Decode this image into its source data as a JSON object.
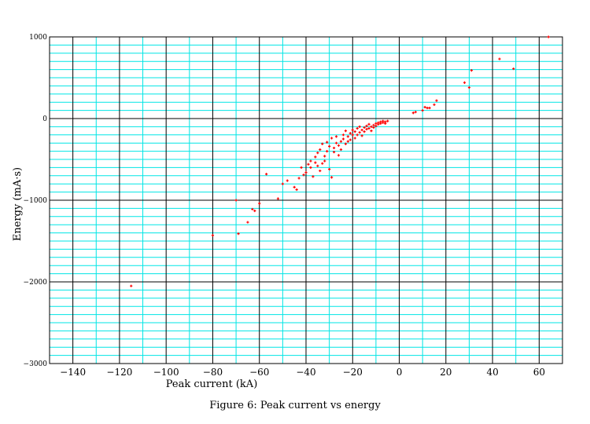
{
  "caption": "Figure 6: Peak current vs energy",
  "chart_data": {
    "type": "scatter",
    "xlabel": "Peak current (kA)",
    "ylabel": "Energy (mA·s)",
    "xlim": [
      -150,
      70
    ],
    "ylim": [
      -3000,
      1000
    ],
    "x_major_ticks": [
      -140,
      -120,
      -100,
      -80,
      -60,
      -40,
      -20,
      0,
      20,
      40,
      60
    ],
    "x_tick_labels": [
      "−140",
      "−120",
      "−100",
      "−80",
      "−60",
      "−40",
      "−20",
      "0",
      "20",
      "40",
      "60"
    ],
    "y_major_ticks": [
      -3000,
      -2000,
      -1000,
      0,
      1000
    ],
    "y_tick_labels": [
      "−3000",
      "−2000",
      "−1000",
      "0",
      "1000"
    ],
    "x_minor_step": 10,
    "y_minor_step": 100,
    "grid": true,
    "colors": {
      "points": "#ff0000",
      "minor_grid": "#00e5e5",
      "major_grid": "#000000"
    },
    "series": [
      {
        "points": [
          [
            -115,
            -2050
          ],
          [
            -80,
            -1430
          ],
          [
            -70,
            -1000
          ],
          [
            -69,
            -1410
          ],
          [
            -65,
            -1270
          ],
          [
            -63,
            -1110
          ],
          [
            -62,
            -1130
          ],
          [
            -60,
            -1040
          ],
          [
            -57,
            -680
          ],
          [
            -52,
            -980
          ],
          [
            -50,
            -800
          ],
          [
            -48,
            -760
          ],
          [
            -45,
            -840
          ],
          [
            -44,
            -870
          ],
          [
            -43,
            -730
          ],
          [
            -42,
            -600
          ],
          [
            -41,
            -690
          ],
          [
            -40,
            -660
          ],
          [
            -39,
            -560
          ],
          [
            -38,
            -520
          ],
          [
            -38,
            -600
          ],
          [
            -37,
            -710
          ],
          [
            -36,
            -540
          ],
          [
            -36,
            -470
          ],
          [
            -35,
            -420
          ],
          [
            -35,
            -580
          ],
          [
            -34,
            -380
          ],
          [
            -34,
            -640
          ],
          [
            -33,
            -550
          ],
          [
            -33,
            -310
          ],
          [
            -32,
            -460
          ],
          [
            -32,
            -520
          ],
          [
            -31,
            -400
          ],
          [
            -31,
            -290
          ],
          [
            -30,
            -340
          ],
          [
            -30,
            -620
          ],
          [
            -29,
            -240
          ],
          [
            -29,
            -720
          ],
          [
            -28,
            -410
          ],
          [
            -28,
            -360
          ],
          [
            -27,
            -300
          ],
          [
            -27,
            -220
          ],
          [
            -26,
            -450
          ],
          [
            -26,
            -330
          ],
          [
            -25,
            -280
          ],
          [
            -25,
            -380
          ],
          [
            -24,
            -250
          ],
          [
            -24,
            -200
          ],
          [
            -23,
            -310
          ],
          [
            -23,
            -150
          ],
          [
            -22,
            -220
          ],
          [
            -22,
            -280
          ],
          [
            -21,
            -180
          ],
          [
            -21,
            -260
          ],
          [
            -20,
            -200
          ],
          [
            -20,
            -140
          ],
          [
            -19,
            -240
          ],
          [
            -19,
            -160
          ],
          [
            -18,
            -120
          ],
          [
            -18,
            -200
          ],
          [
            -17,
            -170
          ],
          [
            -17,
            -100
          ],
          [
            -16,
            -140
          ],
          [
            -16,
            -210
          ],
          [
            -15,
            -110
          ],
          [
            -15,
            -160
          ],
          [
            -14,
            -90
          ],
          [
            -14,
            -130
          ],
          [
            -13,
            -120
          ],
          [
            -13,
            -70
          ],
          [
            -12,
            -100
          ],
          [
            -12,
            -150
          ],
          [
            -11,
            -80
          ],
          [
            -11,
            -110
          ],
          [
            -10,
            -60
          ],
          [
            -10,
            -90
          ],
          [
            -9,
            -70
          ],
          [
            -9,
            -50
          ],
          [
            -8,
            -60
          ],
          [
            -8,
            -40
          ],
          [
            -7,
            -50
          ],
          [
            -7,
            -30
          ],
          [
            -6,
            -40
          ],
          [
            -6,
            -60
          ],
          [
            -5,
            -30
          ],
          [
            6,
            70
          ],
          [
            7,
            80
          ],
          [
            10,
            100
          ],
          [
            11,
            140
          ],
          [
            12,
            130
          ],
          [
            13,
            130
          ],
          [
            15,
            170
          ],
          [
            16,
            220
          ],
          [
            28,
            440
          ],
          [
            30,
            380
          ],
          [
            31,
            590
          ],
          [
            43,
            730
          ],
          [
            49,
            610
          ],
          [
            64,
            1000
          ]
        ]
      }
    ]
  }
}
